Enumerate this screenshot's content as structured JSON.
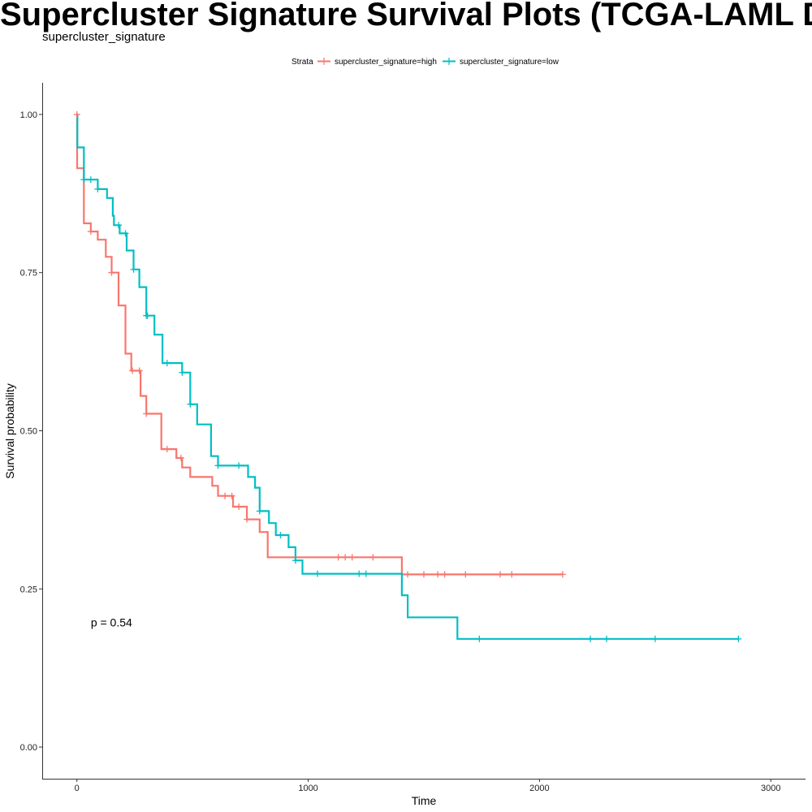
{
  "chart_data": {
    "type": "line",
    "title": "Supercluster Signature Survival Plots (TCGA-LAML Deconvolved)",
    "subtitle": "supercluster_signature",
    "xlabel": "Time",
    "ylabel": "Survival probability",
    "xlim": [
      -150,
      3150
    ],
    "ylim": [
      -0.05,
      1.05
    ],
    "x_ticks": [
      0,
      1000,
      2000,
      3000
    ],
    "y_ticks": [
      0,
      0.25,
      0.5,
      0.75,
      1.0
    ],
    "x_tick_labels": [
      "0",
      "1000",
      "2000",
      "3000"
    ],
    "y_tick_labels": [
      "0.00",
      "0.25",
      "0.50",
      "0.75",
      "1.00"
    ],
    "grid": false,
    "legend": {
      "title": "Strata",
      "position": "top"
    },
    "annotation": "p = 0.54",
    "annotation_pos": {
      "x": 60,
      "y": 0.197
    },
    "series": [
      {
        "name": "supercluster_signature=high",
        "color": "#F8766D",
        "steps": [
          [
            0,
            1.0
          ],
          [
            1,
            0.915
          ],
          [
            30,
            0.828
          ],
          [
            60,
            0.815
          ],
          [
            90,
            0.802
          ],
          [
            125,
            0.775
          ],
          [
            150,
            0.75
          ],
          [
            170,
            0.75
          ],
          [
            180,
            0.698
          ],
          [
            210,
            0.622
          ],
          [
            235,
            0.595
          ],
          [
            275,
            0.555
          ],
          [
            300,
            0.527
          ],
          [
            365,
            0.471
          ],
          [
            430,
            0.457
          ],
          [
            455,
            0.442
          ],
          [
            490,
            0.427
          ],
          [
            585,
            0.413
          ],
          [
            610,
            0.397
          ],
          [
            675,
            0.38
          ],
          [
            735,
            0.36
          ],
          [
            790,
            0.34
          ],
          [
            825,
            0.3
          ],
          [
            1405,
            0.273
          ],
          [
            2100,
            0.273
          ]
        ],
        "censor_times": [
          0,
          60,
          150,
          240,
          270,
          300,
          390,
          450,
          640,
          670,
          700,
          735,
          1130,
          1160,
          1190,
          1280,
          1430,
          1500,
          1560,
          1590,
          1680,
          1830,
          1880,
          2100
        ]
      },
      {
        "name": "supercluster_signature=low",
        "color": "#00BFC4",
        "steps": [
          [
            0,
            1.0
          ],
          [
            2,
            0.948
          ],
          [
            30,
            0.897
          ],
          [
            90,
            0.882
          ],
          [
            130,
            0.868
          ],
          [
            155,
            0.84
          ],
          [
            160,
            0.825
          ],
          [
            185,
            0.812
          ],
          [
            215,
            0.785
          ],
          [
            245,
            0.755
          ],
          [
            270,
            0.727
          ],
          [
            300,
            0.682
          ],
          [
            335,
            0.652
          ],
          [
            370,
            0.607
          ],
          [
            455,
            0.592
          ],
          [
            490,
            0.542
          ],
          [
            520,
            0.51
          ],
          [
            580,
            0.46
          ],
          [
            610,
            0.445
          ],
          [
            740,
            0.427
          ],
          [
            770,
            0.41
          ],
          [
            790,
            0.373
          ],
          [
            830,
            0.354
          ],
          [
            860,
            0.335
          ],
          [
            915,
            0.316
          ],
          [
            945,
            0.295
          ],
          [
            975,
            0.274
          ],
          [
            1405,
            0.24
          ],
          [
            1430,
            0.205
          ],
          [
            1645,
            0.171
          ],
          [
            2860,
            0.171
          ]
        ],
        "censor_times": [
          30,
          60,
          90,
          180,
          210,
          245,
          300,
          305,
          390,
          455,
          490,
          610,
          700,
          790,
          880,
          945,
          1040,
          1220,
          1250,
          1740,
          2220,
          2290,
          2500,
          2860
        ]
      }
    ]
  }
}
